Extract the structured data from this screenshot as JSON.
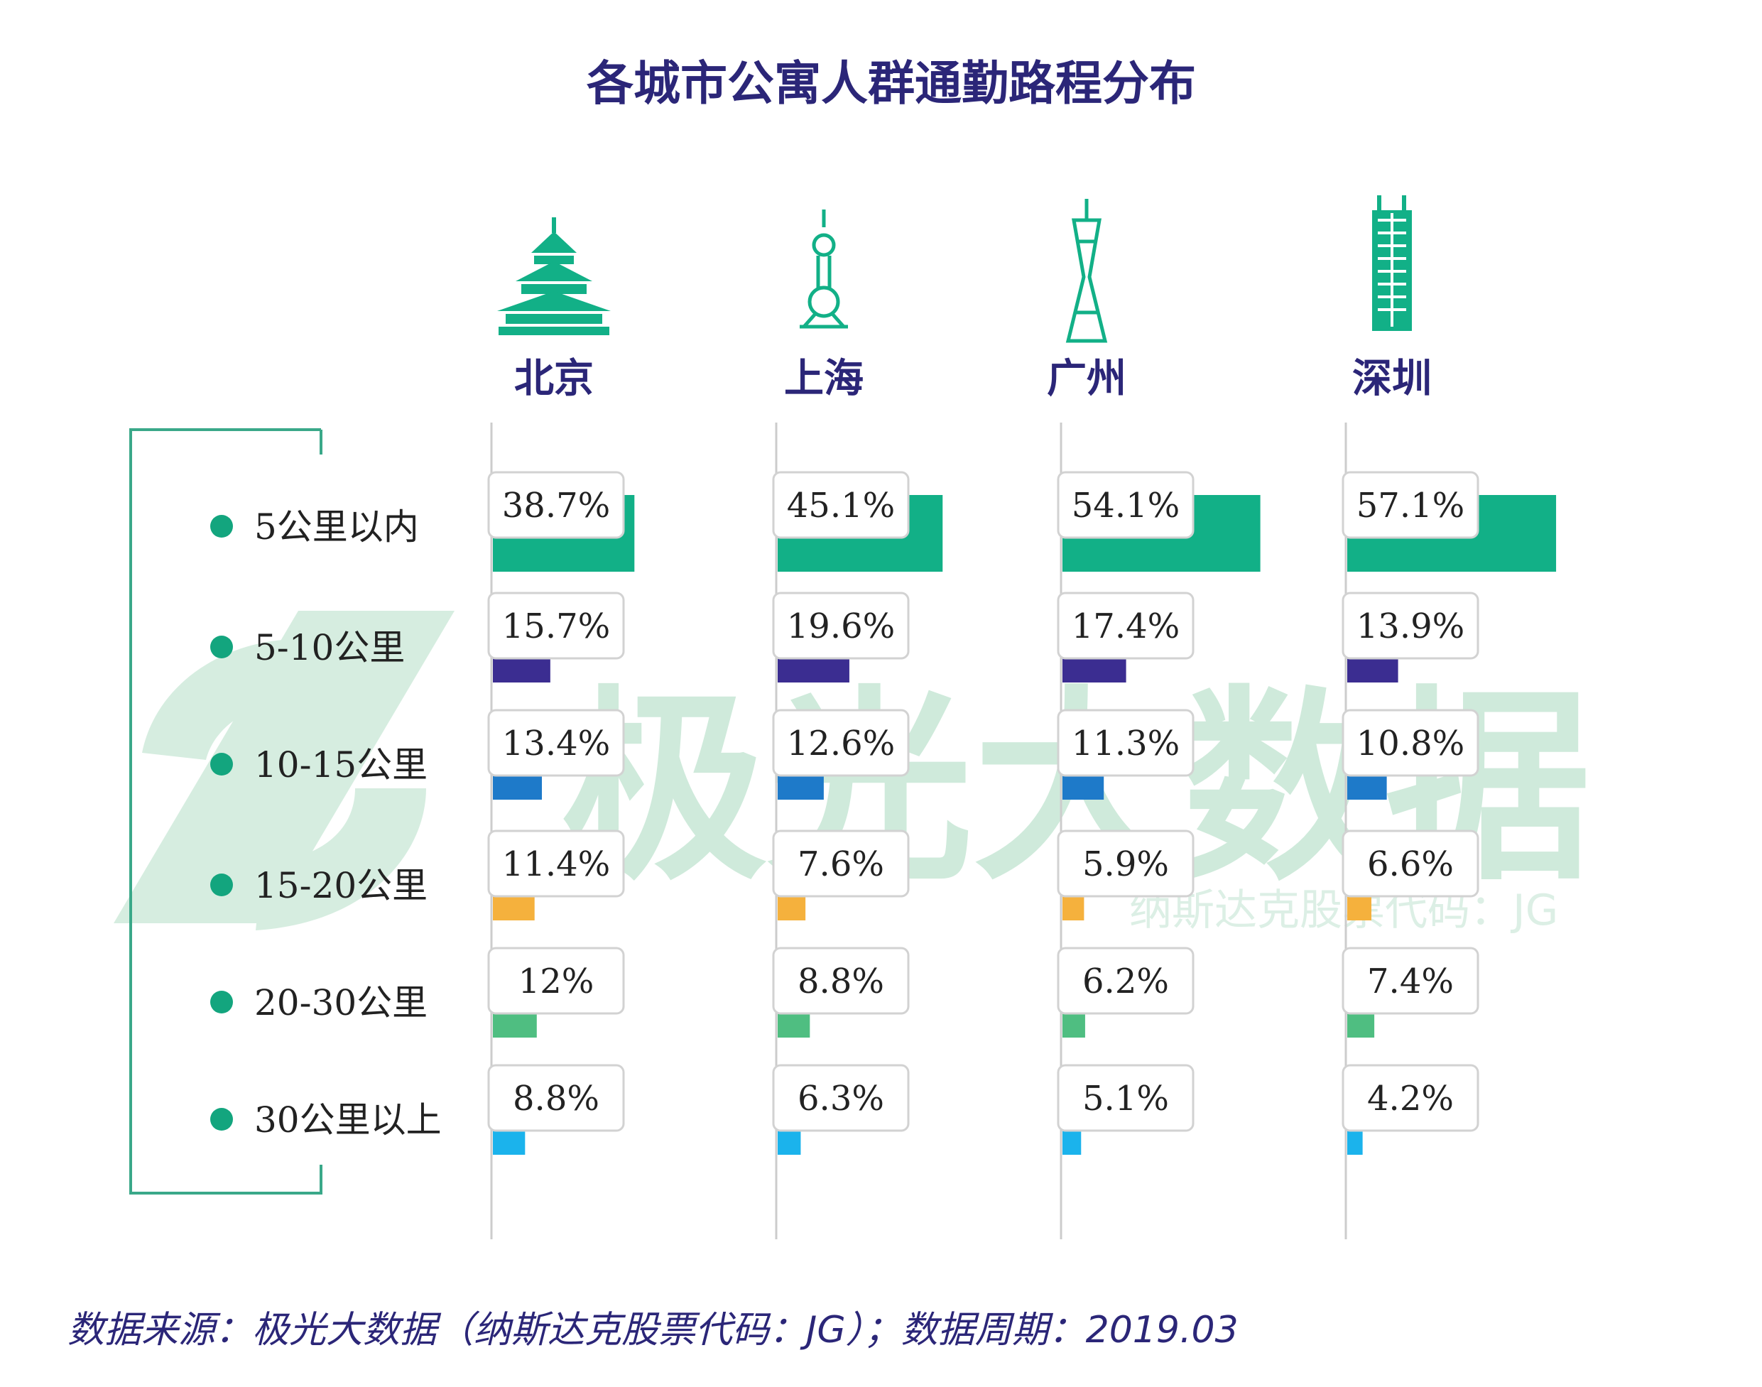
{
  "title": "各城市公寓人群通勤路程分布",
  "source": "数据来源：极光大数据（纳斯达克股票代码：JG）；数据周期：2019.03",
  "watermark": {
    "brand": "极光大数据",
    "ticker": "纳斯达克股票代码：JG"
  },
  "colors": {
    "title": "#2b2678",
    "accent": "#12b087",
    "dot": "#13a57e",
    "bracket": "#3aa889"
  },
  "chart_data": {
    "type": "bar",
    "orientation": "horizontal",
    "categories": [
      "5公里以内",
      "5-10公里",
      "10-15公里",
      "15-20公里",
      "20-30公里",
      "30公里以上"
    ],
    "category_colors": [
      "#12b087",
      "#3b2d91",
      "#1e7ac9",
      "#f5b13d",
      "#4fbe81",
      "#1bb3ec"
    ],
    "series": [
      {
        "name": "北京",
        "icon": "temple-of-heaven-icon",
        "values": [
          38.7,
          15.7,
          13.4,
          11.4,
          12,
          8.8
        ],
        "labels": [
          "38.7%",
          "15.7%",
          "13.4%",
          "11.4%",
          "12%",
          "8.8%"
        ]
      },
      {
        "name": "上海",
        "icon": "oriental-pearl-tower-icon",
        "values": [
          45.1,
          19.6,
          12.6,
          7.6,
          8.8,
          6.3
        ],
        "labels": [
          "45.1%",
          "19.6%",
          "12.6%",
          "7.6%",
          "8.8%",
          "6.3%"
        ]
      },
      {
        "name": "广州",
        "icon": "canton-tower-icon",
        "values": [
          54.1,
          17.4,
          11.3,
          5.9,
          6.2,
          5.1
        ],
        "labels": [
          "54.1%",
          "17.4%",
          "11.3%",
          "5.9%",
          "6.2%",
          "5.1%"
        ]
      },
      {
        "name": "深圳",
        "icon": "skyscraper-icon",
        "values": [
          57.1,
          13.9,
          10.8,
          6.6,
          7.4,
          4.2
        ],
        "labels": [
          "57.1%",
          "13.9%",
          "10.8%",
          "6.6%",
          "7.4%",
          "4.2%"
        ]
      }
    ],
    "unit": "%",
    "legend": "left"
  }
}
